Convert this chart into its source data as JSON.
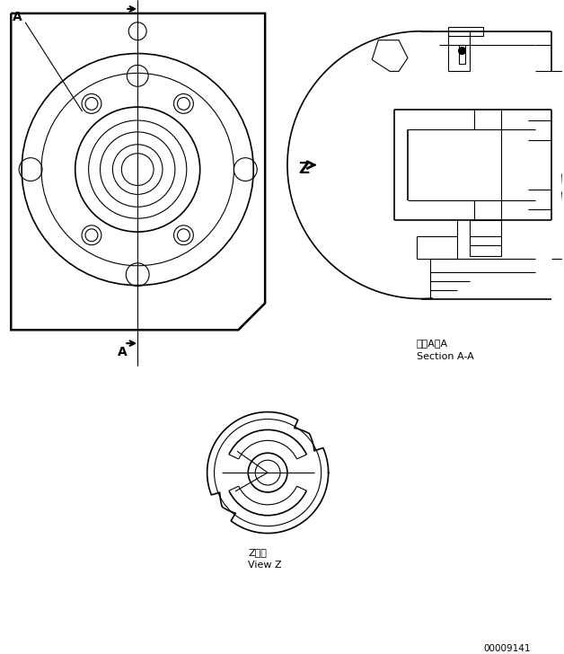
{
  "bg_color": "#ffffff",
  "line_color": "#000000",
  "fig_width": 6.28,
  "fig_height": 7.28,
  "dpi": 100,
  "part_id": "00009141",
  "section_label_jp": "断面A－A",
  "section_label_en": "Section A-A",
  "view_label_jp": "Z　視",
  "view_label_en": "View Z",
  "lw_thin": 0.8,
  "lw_med": 1.2,
  "lw_thick": 1.8
}
